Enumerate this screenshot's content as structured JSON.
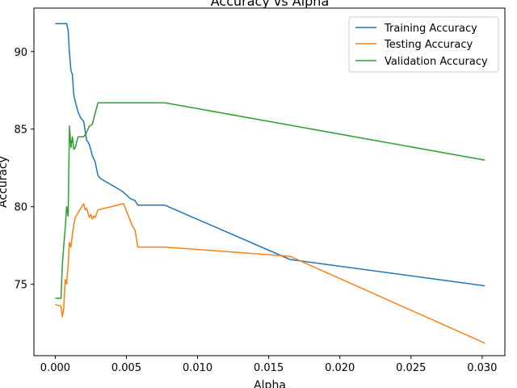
{
  "chart_data": {
    "type": "line",
    "title": "Accuracy vs Alpha",
    "xlabel": "Alpha",
    "ylabel": "Accuracy",
    "xlim": [
      -0.0015,
      0.0316
    ],
    "ylim": [
      70.4,
      92.8
    ],
    "xticks": [
      0.0,
      0.005,
      0.01,
      0.015,
      0.02,
      0.025,
      0.03
    ],
    "xtick_labels": [
      "0.000",
      "0.005",
      "0.010",
      "0.015",
      "0.020",
      "0.025",
      "0.030"
    ],
    "yticks": [
      75,
      80,
      85,
      90
    ],
    "ytick_labels": [
      "75",
      "80",
      "85",
      "90"
    ],
    "grid": false,
    "legend_position": "top-right",
    "series": [
      {
        "name": "Training Accuracy",
        "color": "#1f77b4",
        "x": [
          0.0,
          0.0008,
          0.0009,
          0.001,
          0.0011,
          0.0012,
          0.0013,
          0.0014,
          0.0016,
          0.0018,
          0.002,
          0.0022,
          0.0024,
          0.0026,
          0.0028,
          0.003,
          0.0032,
          0.0047,
          0.0053,
          0.0056,
          0.0058,
          0.0077,
          0.0165,
          0.0302
        ],
        "y": [
          91.8,
          91.8,
          91.4,
          89.9,
          88.8,
          88.5,
          87.2,
          86.8,
          86.1,
          85.7,
          85.5,
          84.3,
          84.0,
          83.3,
          82.9,
          82.0,
          81.8,
          81.0,
          80.5,
          80.4,
          80.1,
          80.1,
          76.6,
          74.9
        ]
      },
      {
        "name": "Testing Accuracy",
        "color": "#ff7f0e",
        "x": [
          0.0,
          0.0004,
          0.0005,
          0.0006,
          0.0007,
          0.0008,
          0.0009,
          0.001,
          0.0011,
          0.0012,
          0.0013,
          0.0014,
          0.0016,
          0.0018,
          0.002,
          0.0021,
          0.0022,
          0.0024,
          0.0025,
          0.0026,
          0.0027,
          0.0028,
          0.003,
          0.0048,
          0.0054,
          0.0056,
          0.0058,
          0.0077,
          0.0165,
          0.0302
        ],
        "y": [
          73.7,
          73.6,
          72.9,
          73.5,
          75.3,
          75.0,
          76.2,
          77.7,
          77.4,
          78.2,
          78.8,
          79.3,
          79.6,
          79.9,
          80.2,
          79.8,
          79.9,
          79.3,
          79.5,
          79.2,
          79.4,
          79.3,
          79.8,
          80.2,
          78.8,
          78.5,
          77.4,
          77.4,
          76.8,
          71.2
        ]
      },
      {
        "name": "Validation Accuracy",
        "color": "#2ca02c",
        "x": [
          0.0,
          0.0004,
          0.0005,
          0.0006,
          0.0007,
          0.0008,
          0.0009,
          0.001,
          0.0011,
          0.0012,
          0.0013,
          0.0014,
          0.0016,
          0.0018,
          0.002,
          0.0022,
          0.0024,
          0.0026,
          0.0028,
          0.003,
          0.0077,
          0.0302
        ],
        "y": [
          74.1,
          74.1,
          76.3,
          77.5,
          78.6,
          80.0,
          79.4,
          85.2,
          83.8,
          84.5,
          83.7,
          83.8,
          84.5,
          84.5,
          84.5,
          84.8,
          85.2,
          85.3,
          86.0,
          86.7,
          86.7,
          83.0
        ]
      }
    ]
  }
}
